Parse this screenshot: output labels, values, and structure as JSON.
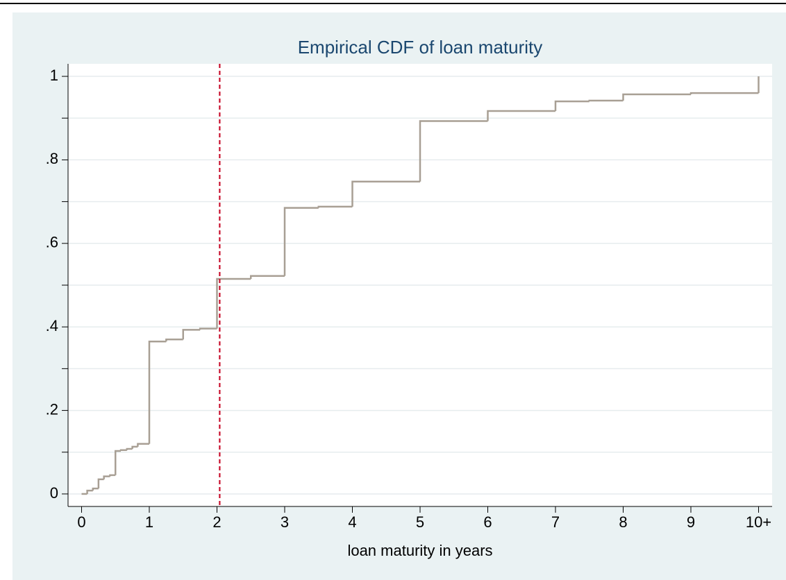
{
  "chart_data": {
    "type": "step",
    "title": "Empirical CDF of loan maturity",
    "x_label": "loan maturity in years",
    "x": [
      0,
      0.083,
      0.167,
      0.25,
      0.33,
      0.42,
      0.5,
      0.58,
      0.67,
      0.75,
      0.83,
      1,
      1.25,
      1.5,
      1.75,
      2,
      2.5,
      3,
      3.5,
      4,
      5,
      6,
      7,
      7.5,
      8,
      9,
      10
    ],
    "values": [
      0,
      0.008,
      0.013,
      0.035,
      0.042,
      0.045,
      0.103,
      0.105,
      0.108,
      0.113,
      0.12,
      0.365,
      0.37,
      0.393,
      0.396,
      0.515,
      0.522,
      0.685,
      0.688,
      0.748,
      0.893,
      0.917,
      0.94,
      0.942,
      0.957,
      0.96,
      1
    ],
    "color": "#a89f94",
    "xlim": [
      -0.2,
      10.2
    ],
    "ylim": [
      -0.03,
      1.03
    ],
    "xticks": [
      0,
      1,
      2,
      3,
      4,
      5,
      6,
      7,
      8,
      9,
      {
        "value": 10,
        "label": "10+"
      }
    ],
    "yticks": [
      0,
      {
        "value": 0.2,
        "label": ".2"
      },
      {
        "value": 0.4,
        "label": ".4"
      },
      {
        "value": 0.6,
        "label": ".6"
      },
      {
        "value": 0.8,
        "label": ".8"
      },
      1
    ],
    "yminorticks": [
      0.1,
      0.3,
      0.5,
      0.7,
      0.9
    ],
    "grid": true,
    "reference_line": {
      "x": 2.04,
      "color": "#c8102e",
      "style": "dashed"
    }
  }
}
